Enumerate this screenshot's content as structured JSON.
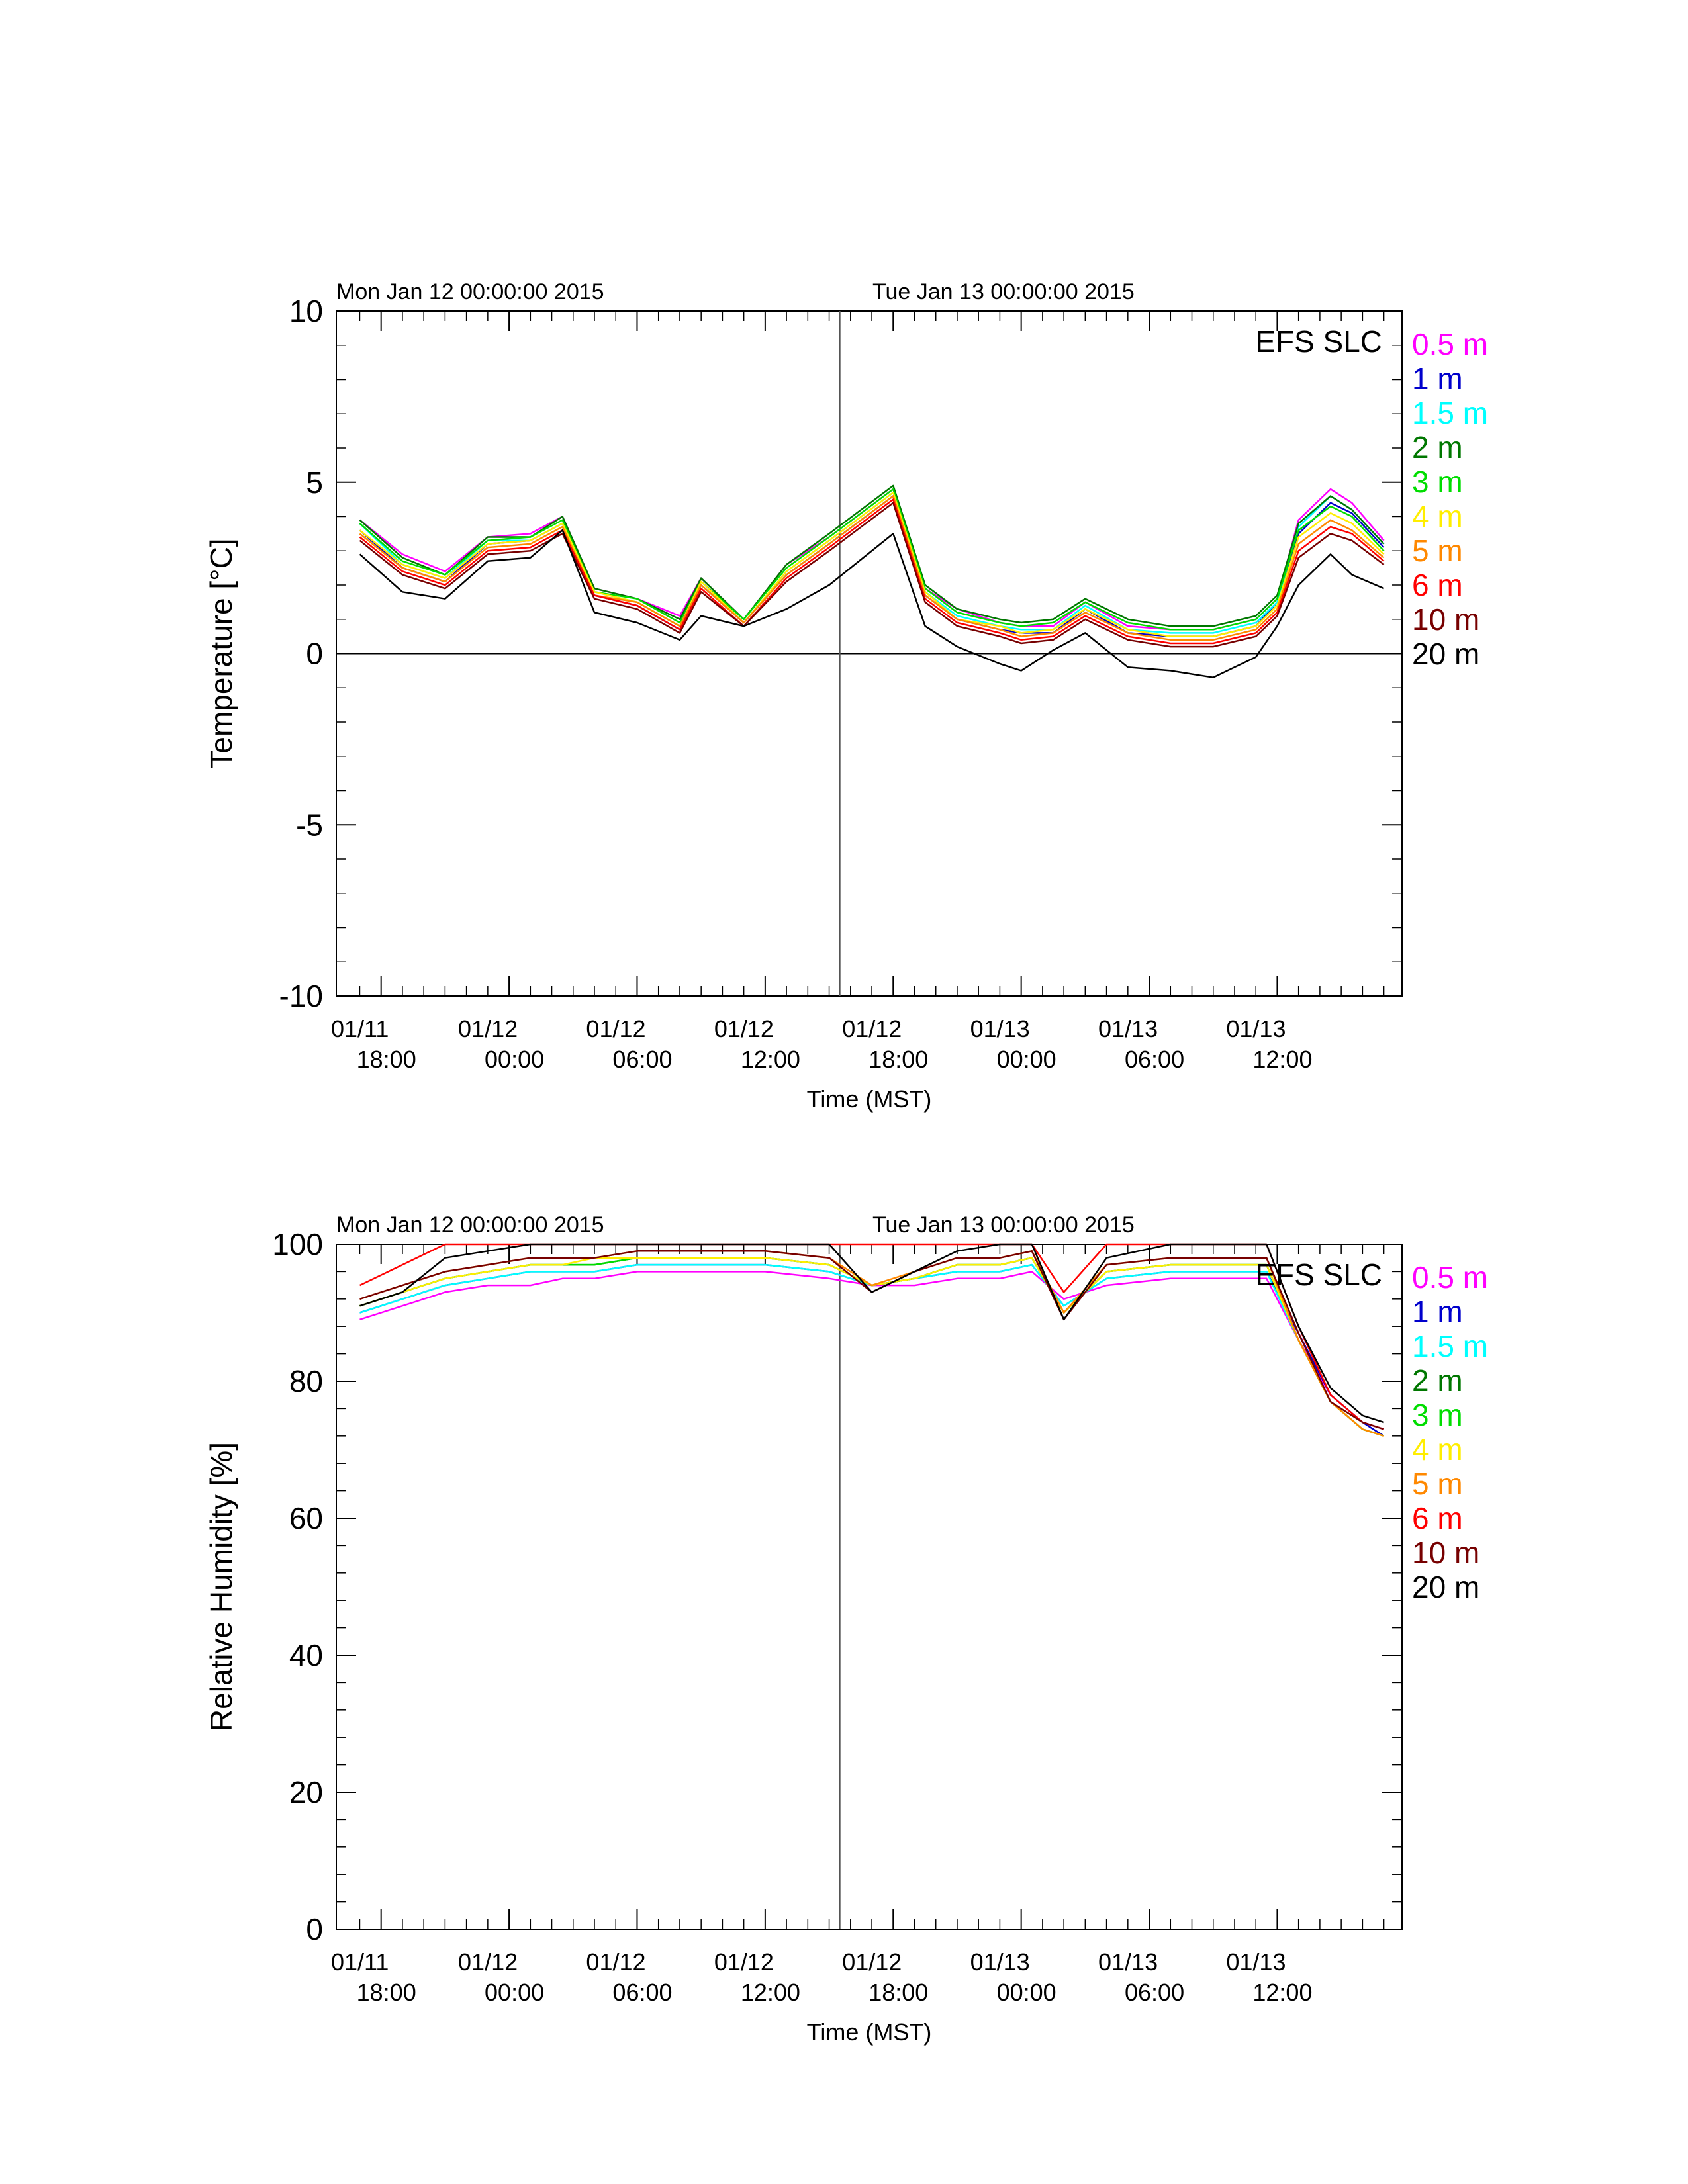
{
  "chart_data": [
    {
      "type": "line",
      "header_labels": [
        "Mon Jan 12 00:00:00 2015",
        "Tue Jan 13 00:00:00 2015"
      ],
      "station_label": "EFS SLC",
      "xlabel": "Time (MST)",
      "ylabel": "Temperature [°C]",
      "ylim": [
        -10,
        10
      ],
      "yticks": [
        "10",
        "5",
        "0",
        "-5",
        "-10"
      ],
      "xticks": [
        {
          "date": "01/11",
          "time": "18:00"
        },
        {
          "date": "01/12",
          "time": "00:00"
        },
        {
          "date": "01/12",
          "time": "06:00"
        },
        {
          "date": "01/12",
          "time": "12:00"
        },
        {
          "date": "01/12",
          "time": "18:00"
        },
        {
          "date": "01/13",
          "time": "00:00"
        },
        {
          "date": "01/13",
          "time": "06:00"
        },
        {
          "date": "01/13",
          "time": "12:00"
        }
      ],
      "x_hours": [
        17.0,
        19.0,
        21.0,
        23.0,
        25.0,
        26.5,
        28.0,
        30.0,
        32.0,
        33.0,
        35.0,
        37.0,
        39.0,
        42.0,
        43.5,
        45.0,
        47.0,
        48.0,
        49.5,
        51.0,
        53.0,
        55.0,
        57.0,
        59.0,
        60.0,
        61.0,
        62.5,
        63.5,
        65.0
      ],
      "series": [
        {
          "name": "0.5 m",
          "color": "#ff00ff",
          "values": [
            3.9,
            2.9,
            2.4,
            3.4,
            3.5,
            4.0,
            1.9,
            1.6,
            1.1,
            2.2,
            1.0,
            2.6,
            3.4,
            4.8,
            1.9,
            1.3,
            0.9,
            0.8,
            0.8,
            1.5,
            0.8,
            0.7,
            0.7,
            1.0,
            1.6,
            3.9,
            4.8,
            4.4,
            3.3
          ]
        },
        {
          "name": "1 m",
          "color": "#0000cc",
          "values": [
            3.6,
            2.5,
            2.1,
            3.2,
            3.3,
            3.8,
            1.7,
            1.4,
            0.7,
            2.0,
            0.9,
            2.3,
            3.2,
            4.6,
            1.7,
            1.0,
            0.7,
            0.6,
            0.6,
            1.3,
            0.6,
            0.5,
            0.5,
            0.8,
            1.5,
            3.5,
            4.4,
            4.1,
            3.1
          ]
        },
        {
          "name": "1.5 m",
          "color": "#00ffff",
          "values": [
            3.8,
            2.6,
            2.2,
            3.3,
            3.3,
            3.8,
            1.8,
            1.5,
            0.8,
            2.1,
            0.9,
            2.4,
            3.3,
            4.7,
            1.8,
            1.1,
            0.8,
            0.7,
            0.7,
            1.4,
            0.7,
            0.6,
            0.6,
            0.9,
            1.5,
            3.7,
            4.6,
            4.2,
            3.2
          ]
        },
        {
          "name": "2 m",
          "color": "#007700",
          "values": [
            3.9,
            2.8,
            2.3,
            3.4,
            3.4,
            4.0,
            1.9,
            1.6,
            1.0,
            2.2,
            1.0,
            2.6,
            3.5,
            4.9,
            2.0,
            1.3,
            1.0,
            0.9,
            1.0,
            1.6,
            1.0,
            0.8,
            0.8,
            1.1,
            1.7,
            3.8,
            4.6,
            4.2,
            3.2
          ]
        },
        {
          "name": "3 m",
          "color": "#00dd00",
          "values": [
            3.8,
            2.7,
            2.3,
            3.3,
            3.4,
            3.9,
            1.8,
            1.6,
            0.9,
            2.1,
            1.0,
            2.5,
            3.4,
            4.8,
            1.9,
            1.2,
            0.9,
            0.8,
            0.9,
            1.5,
            0.9,
            0.7,
            0.7,
            1.0,
            1.6,
            3.6,
            4.3,
            4.0,
            3.0
          ]
        },
        {
          "name": "4 m",
          "color": "#ffee00",
          "values": [
            3.6,
            2.6,
            2.2,
            3.2,
            3.3,
            3.8,
            1.8,
            1.5,
            0.8,
            2.1,
            0.9,
            2.4,
            3.3,
            4.7,
            1.8,
            1.0,
            0.8,
            0.6,
            0.7,
            1.3,
            0.7,
            0.5,
            0.5,
            0.8,
            1.4,
            3.4,
            4.1,
            3.8,
            2.9
          ]
        },
        {
          "name": "5 m",
          "color": "#ff8800",
          "values": [
            3.5,
            2.5,
            2.1,
            3.1,
            3.2,
            3.7,
            1.7,
            1.5,
            0.8,
            2.0,
            0.9,
            2.3,
            3.2,
            4.6,
            1.7,
            1.0,
            0.7,
            0.5,
            0.6,
            1.2,
            0.6,
            0.4,
            0.4,
            0.7,
            1.3,
            3.2,
            3.9,
            3.6,
            2.8
          ]
        },
        {
          "name": "6 m",
          "color": "#ff0000",
          "values": [
            3.4,
            2.4,
            2.0,
            3.0,
            3.1,
            3.6,
            1.7,
            1.4,
            0.7,
            1.9,
            0.8,
            2.2,
            3.1,
            4.5,
            1.6,
            0.9,
            0.6,
            0.4,
            0.5,
            1.1,
            0.5,
            0.3,
            0.3,
            0.6,
            1.2,
            3.0,
            3.7,
            3.5,
            2.7
          ]
        },
        {
          "name": "10 m",
          "color": "#770000",
          "values": [
            3.3,
            2.3,
            1.9,
            2.9,
            3.0,
            3.5,
            1.6,
            1.3,
            0.6,
            1.8,
            0.8,
            2.1,
            3.0,
            4.4,
            1.5,
            0.8,
            0.5,
            0.3,
            0.4,
            1.0,
            0.4,
            0.2,
            0.2,
            0.5,
            1.1,
            2.8,
            3.5,
            3.3,
            2.6
          ]
        },
        {
          "name": "20 m",
          "color": "#000000",
          "values": [
            2.9,
            1.8,
            1.6,
            2.7,
            2.8,
            3.6,
            1.2,
            0.9,
            0.4,
            1.1,
            0.8,
            1.3,
            2.0,
            3.5,
            0.8,
            0.2,
            -0.3,
            -0.5,
            0.1,
            0.6,
            -0.4,
            -0.5,
            -0.7,
            -0.1,
            0.8,
            2.0,
            2.9,
            2.3,
            1.9
          ]
        }
      ]
    },
    {
      "type": "line",
      "header_labels": [
        "Mon Jan 12 00:00:00 2015",
        "Tue Jan 13 00:00:00 2015"
      ],
      "station_label": "EFS SLC",
      "xlabel": "Time (MST)",
      "ylabel": "Relative Humidity [%]",
      "ylim": [
        0,
        100
      ],
      "yticks": [
        "100",
        "80",
        "60",
        "40",
        "20",
        "0"
      ],
      "xticks": [
        {
          "date": "01/11",
          "time": "18:00"
        },
        {
          "date": "01/12",
          "time": "00:00"
        },
        {
          "date": "01/12",
          "time": "06:00"
        },
        {
          "date": "01/12",
          "time": "12:00"
        },
        {
          "date": "01/12",
          "time": "18:00"
        },
        {
          "date": "01/13",
          "time": "00:00"
        },
        {
          "date": "01/13",
          "time": "06:00"
        },
        {
          "date": "01/13",
          "time": "12:00"
        }
      ],
      "x_hours": [
        17.0,
        19.0,
        21.0,
        23.0,
        25.0,
        26.5,
        28.0,
        30.0,
        33.0,
        36.0,
        39.0,
        41.0,
        43.0,
        45.0,
        47.0,
        48.5,
        50.0,
        52.0,
        55.0,
        58.0,
        59.5,
        61.0,
        62.5,
        64.0,
        65.0
      ],
      "series": [
        {
          "name": "0.5 m",
          "color": "#ff00ff",
          "values": [
            89,
            91,
            93,
            94,
            94,
            95,
            95,
            96,
            96,
            96,
            95,
            94,
            94,
            95,
            95,
            96,
            92,
            94,
            95,
            95,
            95,
            86,
            78,
            74,
            73
          ]
        },
        {
          "name": "1 m",
          "color": "#0000cc",
          "values": [
            90,
            92,
            94,
            95,
            96,
            96,
            96,
            97,
            97,
            97,
            96,
            94,
            95,
            96,
            96,
            97,
            91,
            95,
            96,
            96,
            96,
            87,
            78,
            74,
            72
          ]
        },
        {
          "name": "1.5 m",
          "color": "#00ffff",
          "values": [
            90,
            92,
            94,
            95,
            96,
            96,
            96,
            97,
            97,
            97,
            96,
            94,
            95,
            96,
            96,
            97,
            91,
            95,
            96,
            96,
            96,
            86,
            77,
            73,
            72
          ]
        },
        {
          "name": "2 m",
          "color": "#007700",
          "values": [
            91,
            93,
            95,
            96,
            97,
            97,
            97,
            98,
            98,
            98,
            97,
            94,
            95,
            97,
            97,
            98,
            90,
            96,
            97,
            97,
            97,
            86,
            77,
            73,
            72
          ]
        },
        {
          "name": "3 m",
          "color": "#00dd00",
          "values": [
            91,
            93,
            95,
            96,
            97,
            97,
            97,
            98,
            98,
            98,
            97,
            94,
            95,
            97,
            97,
            98,
            90,
            96,
            97,
            97,
            97,
            86,
            77,
            73,
            72
          ]
        },
        {
          "name": "4 m",
          "color": "#ffee00",
          "values": [
            91,
            93,
            95,
            96,
            97,
            97,
            98,
            98,
            98,
            98,
            97,
            94,
            95,
            97,
            97,
            98,
            90,
            96,
            97,
            97,
            97,
            86,
            77,
            73,
            72
          ]
        },
        {
          "name": "5 m",
          "color": "#ff8800",
          "values": [
            92,
            94,
            96,
            97,
            98,
            98,
            98,
            99,
            99,
            99,
            98,
            94,
            96,
            98,
            98,
            99,
            90,
            97,
            98,
            98,
            98,
            86,
            77,
            73,
            72
          ]
        },
        {
          "name": "6 m",
          "color": "#ff0000",
          "values": [
            94,
            97,
            100,
            100,
            100,
            100,
            100,
            100,
            100,
            100,
            100,
            100,
            100,
            100,
            100,
            100,
            93,
            100,
            100,
            100,
            100,
            88,
            78,
            74,
            73
          ]
        },
        {
          "name": "10 m",
          "color": "#770000",
          "values": [
            92,
            94,
            96,
            97,
            98,
            98,
            98,
            99,
            99,
            99,
            98,
            93,
            96,
            98,
            98,
            99,
            89,
            97,
            98,
            98,
            98,
            87,
            77,
            74,
            73
          ]
        },
        {
          "name": "20 m",
          "color": "#000000",
          "values": [
            91,
            93,
            98,
            99,
            100,
            100,
            100,
            100,
            100,
            100,
            100,
            93,
            96,
            99,
            100,
            100,
            89,
            98,
            100,
            100,
            100,
            88,
            79,
            75,
            74
          ]
        }
      ]
    }
  ]
}
